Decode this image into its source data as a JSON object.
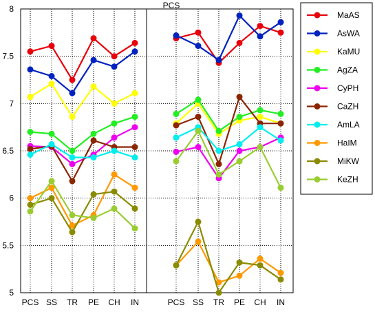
{
  "chart_data": {
    "type": "line",
    "title": "PCS",
    "xlabel": "",
    "ylabel": "",
    "ylim": [
      5,
      8
    ],
    "yticks": [
      "5",
      "5.5",
      "6",
      "6.5",
      "7",
      "7.5",
      "8"
    ],
    "grid": "dotted",
    "legend_position": "right",
    "groups": [
      {
        "categories": [
          "PCS",
          "SS",
          "TR",
          "PE",
          "CH",
          "IN"
        ]
      },
      {
        "categories": [
          "PCS",
          "SS",
          "TR",
          "PE",
          "CH",
          "IN"
        ]
      }
    ],
    "series": [
      {
        "name": "MaAS",
        "color": "#e8000b",
        "values": [
          [
            7.55,
            7.61,
            7.25,
            7.69,
            7.5,
            7.64
          ],
          [
            7.69,
            7.75,
            7.43,
            7.64,
            7.82,
            7.75
          ]
        ]
      },
      {
        "name": "AsWA",
        "color": "#0022c0",
        "values": [
          [
            7.36,
            7.29,
            7.11,
            7.46,
            7.39,
            7.55
          ],
          [
            7.72,
            7.61,
            7.46,
            7.93,
            7.71,
            7.86
          ]
        ]
      },
      {
        "name": "KaMU",
        "color": "#ffff00",
        "values": [
          [
            7.07,
            7.21,
            6.86,
            7.18,
            7.0,
            7.11
          ],
          [
            6.79,
            7.0,
            6.68,
            6.82,
            6.86,
            6.79
          ]
        ]
      },
      {
        "name": "AgZA",
        "color": "#22ee22",
        "values": [
          [
            6.7,
            6.68,
            6.5,
            6.68,
            6.79,
            6.86
          ],
          [
            6.89,
            7.04,
            6.71,
            6.86,
            6.93,
            6.89
          ]
        ]
      },
      {
        "name": "CyPH",
        "color": "#ee00ee",
        "values": [
          [
            6.55,
            6.54,
            6.36,
            6.46,
            6.64,
            6.75
          ],
          [
            6.49,
            6.54,
            6.21,
            6.5,
            6.54,
            6.64
          ]
        ]
      },
      {
        "name": "CaZH",
        "color": "#8b2500",
        "values": [
          [
            6.52,
            6.55,
            6.18,
            6.61,
            6.54,
            6.54
          ],
          [
            6.77,
            6.86,
            6.36,
            7.07,
            6.79,
            6.79
          ]
        ]
      },
      {
        "name": "AmLA",
        "color": "#00eeee",
        "values": [
          [
            6.46,
            6.57,
            6.43,
            6.43,
            6.5,
            6.43
          ],
          [
            6.64,
            6.75,
            6.5,
            6.57,
            6.75,
            6.61
          ]
        ]
      },
      {
        "name": "HaIM",
        "color": "#ff9900",
        "values": [
          [
            6.0,
            6.11,
            5.71,
            5.82,
            6.25,
            6.11
          ],
          [
            5.29,
            5.54,
            5.11,
            5.18,
            5.36,
            5.21
          ]
        ]
      },
      {
        "name": "MiKW",
        "color": "#8b8b00",
        "values": [
          [
            5.93,
            6.0,
            5.64,
            6.04,
            6.07,
            5.89
          ],
          [
            5.29,
            5.75,
            5.0,
            5.32,
            5.29,
            5.14
          ]
        ]
      },
      {
        "name": "KeZH",
        "color": "#9acd32",
        "values": [
          [
            5.86,
            6.18,
            5.82,
            5.79,
            5.89,
            5.68
          ],
          [
            6.39,
            6.71,
            6.25,
            6.39,
            6.54,
            6.11
          ]
        ]
      }
    ]
  }
}
